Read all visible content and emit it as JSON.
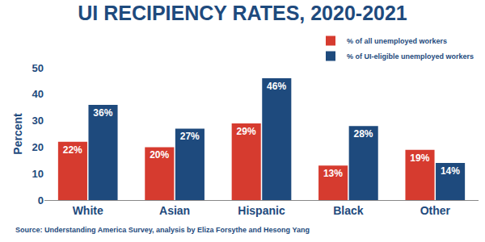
{
  "chart_data": {
    "type": "bar",
    "title": "UI RECIPIENCY RATES, 2020-2021",
    "y_label": "Percent",
    "categories": [
      "White",
      "Asian",
      "Hispanic",
      "Black",
      "Other"
    ],
    "series": [
      {
        "name": "% of all unemployed workers",
        "color": "#d63b2f",
        "values": [
          22,
          20,
          29,
          13,
          19
        ],
        "value_labels": [
          "22%",
          "20%",
          "29%",
          "13%",
          "19%"
        ]
      },
      {
        "name": "% of UI-eligible unemployed workers",
        "color": "#1e4a7d",
        "values": [
          36,
          27,
          46,
          28,
          14
        ],
        "value_labels": [
          "36%",
          "27%",
          "46%",
          "28%",
          "14%"
        ]
      }
    ],
    "ylim": [
      0,
      50
    ],
    "yticks": [
      0,
      10,
      20,
      30,
      40,
      50
    ],
    "grid": false,
    "legend": "top right",
    "data_labels": true,
    "annotations": [
      "Source: Understanding America Survey, analysis by Eliza Forsythe and Hesong Yang"
    ]
  }
}
